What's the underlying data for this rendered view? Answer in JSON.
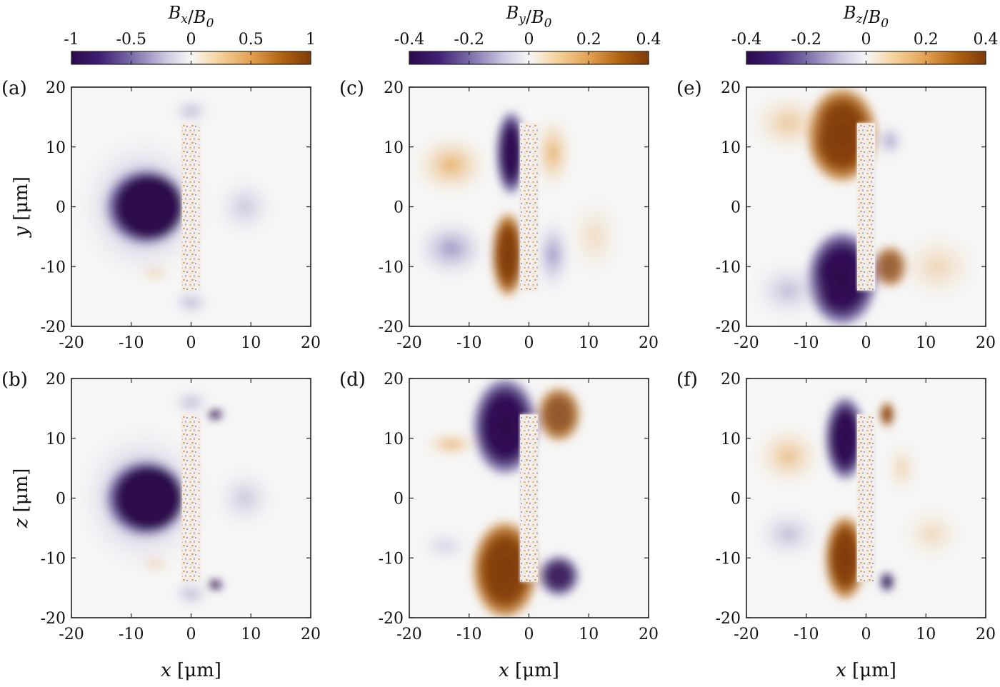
{
  "chart_data": {
    "type": "heatmap",
    "colorbars": [
      {
        "title": "B_x/B_0",
        "ticks": [
          "-1",
          "-0.5",
          "0",
          "0.5",
          "1"
        ],
        "range": [
          -1,
          1
        ],
        "low_color": "#2d0a4d",
        "mid_color": "#f7f7f7",
        "high_color": "#7f3b08"
      },
      {
        "title": "B_y/B_0",
        "ticks": [
          "-0.4",
          "-0.2",
          "0",
          "0.2",
          "0.4"
        ],
        "range": [
          -0.4,
          0.4
        ],
        "low_color": "#2d0a4d",
        "mid_color": "#f7f7f7",
        "high_color": "#7f3b08"
      },
      {
        "title": "B_z/B_0",
        "ticks": [
          "-0.4",
          "-0.2",
          "0",
          "0.2",
          "0.4"
        ],
        "range": [
          -0.4,
          0.4
        ],
        "low_color": "#2d0a4d",
        "mid_color": "#f7f7f7",
        "high_color": "#7f3b08"
      }
    ],
    "panels": [
      {
        "label": "(a)",
        "field": "Bx",
        "plane": "xy",
        "ylabel": "y [μm]",
        "xlabel": ""
      },
      {
        "label": "(b)",
        "field": "Bx",
        "plane": "xz",
        "ylabel": "z [μm]",
        "xlabel": "x [μm]"
      },
      {
        "label": "(c)",
        "field": "By",
        "plane": "xy",
        "ylabel": "",
        "xlabel": ""
      },
      {
        "label": "(d)",
        "field": "By",
        "plane": "xz",
        "ylabel": "",
        "xlabel": "x [μm]"
      },
      {
        "label": "(e)",
        "field": "Bz",
        "plane": "xy",
        "ylabel": "",
        "xlabel": ""
      },
      {
        "label": "(f)",
        "field": "Bz",
        "plane": "xz",
        "ylabel": "",
        "xlabel": "x [μm]"
      }
    ],
    "x_ticks": [
      "-20",
      "-10",
      "0",
      "10",
      "20"
    ],
    "y_ticks": [
      "20",
      "10",
      "0",
      "-10",
      "-20"
    ],
    "xlim": [
      -20,
      20
    ],
    "ylim": [
      -20,
      20
    ],
    "colormap": "PuOr (purple negative, orange positive)"
  }
}
